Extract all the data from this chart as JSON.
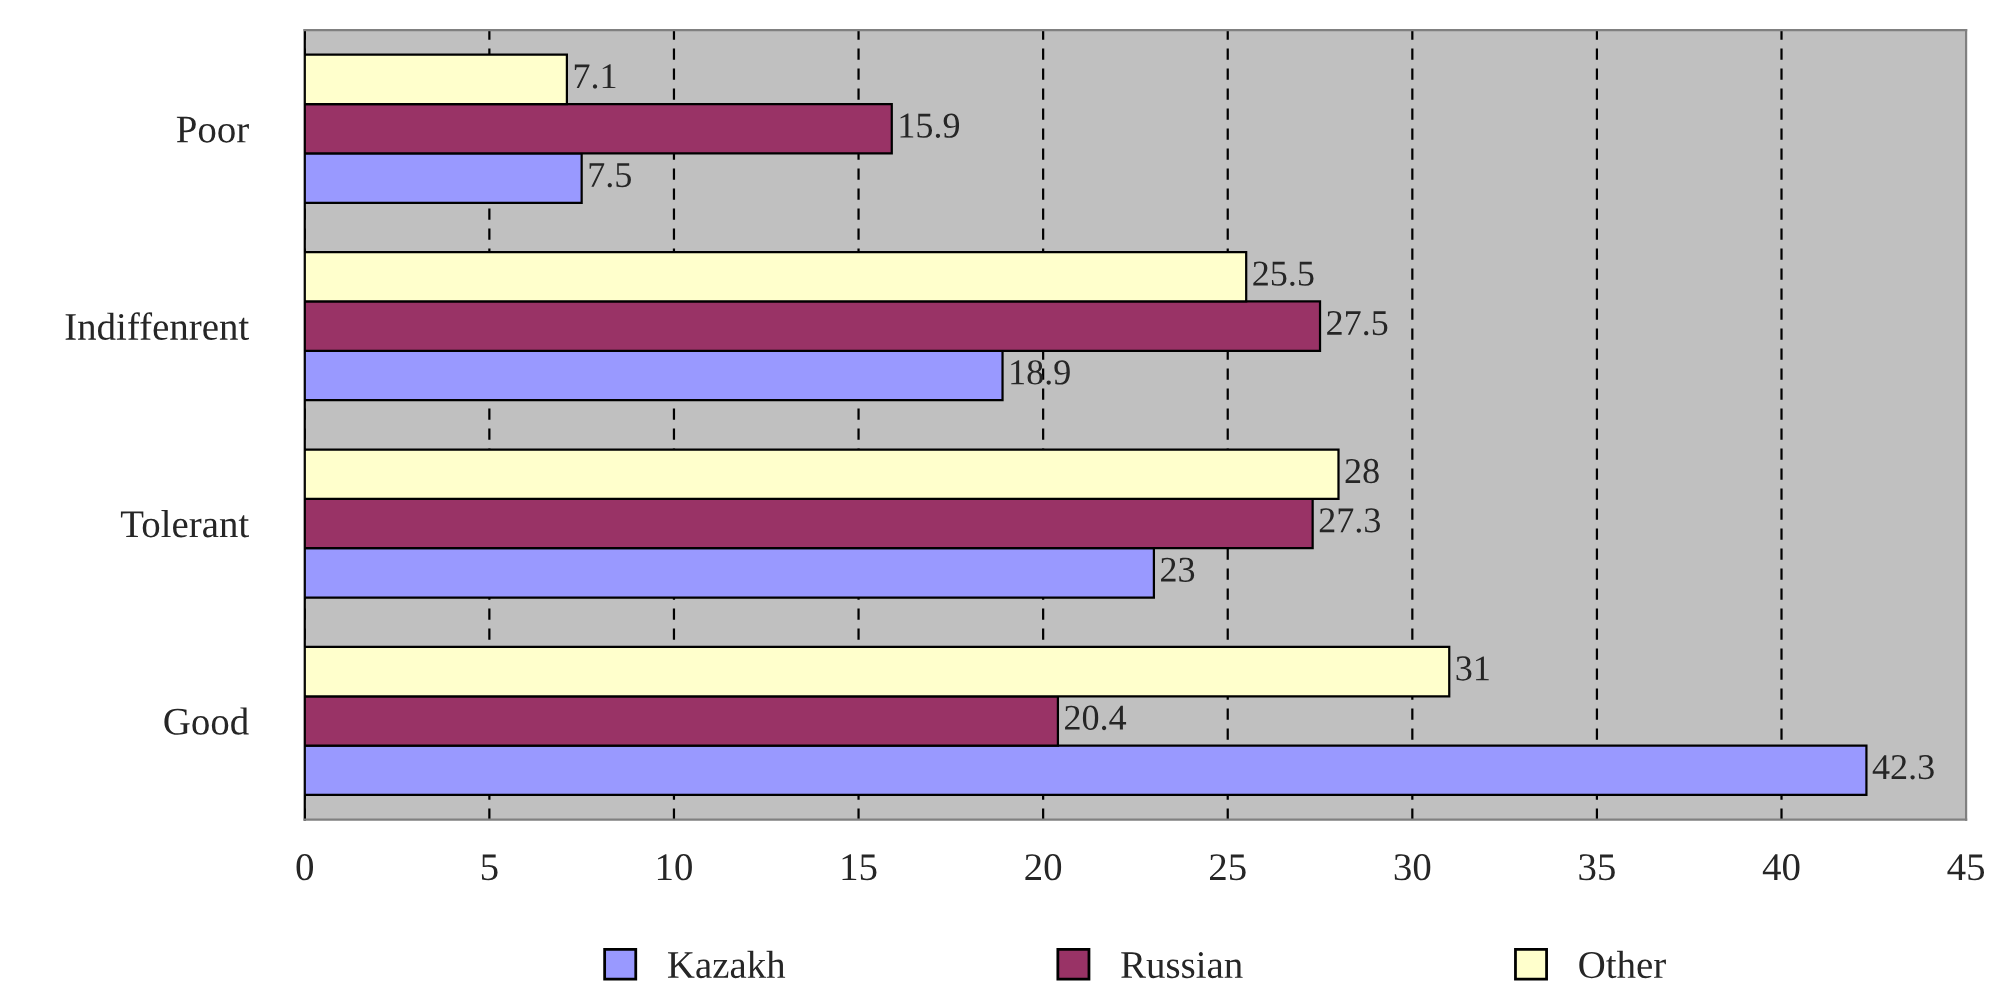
{
  "chart_data": {
    "type": "bar",
    "orientation": "horizontal",
    "categories": [
      "Poor",
      "Indiffenrent",
      "Tolerant",
      "Good"
    ],
    "series": [
      {
        "name": "Kazakh",
        "color": "#9999ff",
        "values": [
          7.5,
          18.9,
          23,
          42.3
        ]
      },
      {
        "name": "Russian",
        "color": "#993366",
        "values": [
          15.9,
          27.5,
          27.3,
          20.4
        ]
      },
      {
        "name": "Other",
        "color": "#ffffcc",
        "values": [
          7.1,
          25.5,
          28,
          31
        ]
      }
    ],
    "xlim": [
      0,
      45
    ],
    "xticks": [
      0,
      5,
      10,
      15,
      20,
      25,
      30,
      35,
      40,
      45
    ],
    "grid": "x",
    "legend": "bottom",
    "data_labels": true
  }
}
